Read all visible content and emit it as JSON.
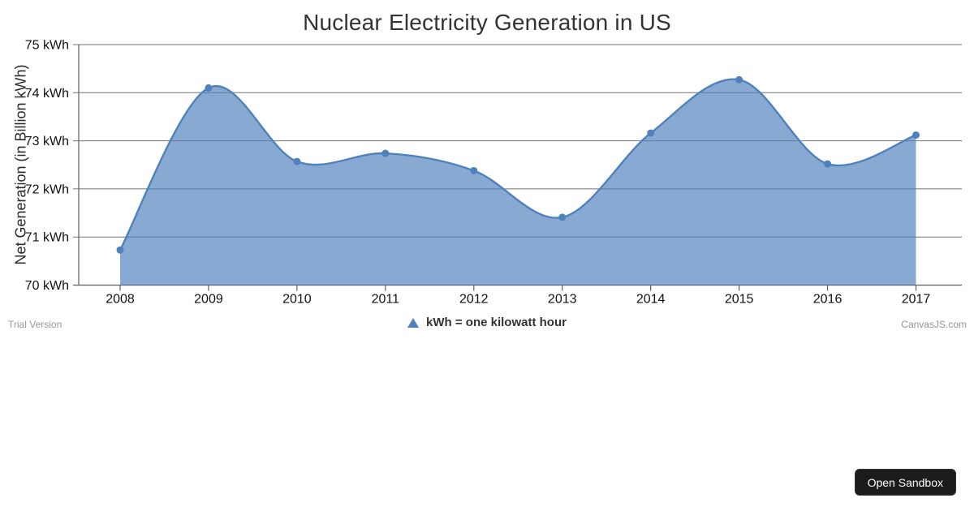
{
  "chart_data": {
    "type": "area",
    "subtype": "splineArea",
    "title": "Nuclear Electricity Generation in US",
    "xlabel": "",
    "ylabel": "Net Generation (in Billion kWh)",
    "categories": [
      "2008",
      "2009",
      "2010",
      "2011",
      "2012",
      "2013",
      "2014",
      "2015",
      "2016",
      "2017"
    ],
    "values": [
      70.73,
      74.1,
      72.57,
      72.74,
      72.38,
      71.41,
      73.16,
      74.27,
      72.52,
      73.12
    ],
    "ylim": [
      70,
      75
    ],
    "y_tick_step": 1,
    "y_tick_labels": [
      "70 kWh",
      "71 kWh",
      "72 kWh",
      "73 kWh",
      "74 kWh",
      "75 kWh"
    ],
    "grid": true,
    "legend_position": "bottom",
    "markers": true,
    "colors": {
      "series": "#4f81bc",
      "fill_opacity": 0.68,
      "gridline": "#707070",
      "axis": "#5e5e5e",
      "tick_label": "#111111",
      "title": "#333333"
    }
  },
  "legend": {
    "marker": "triangle-up-icon",
    "marker_color": "#4f81bc",
    "label": "kWh = one kilowatt hour"
  },
  "footer": {
    "trial": "Trial Version",
    "credit": "CanvasJS.com"
  },
  "sandbox": {
    "label": "Open Sandbox"
  }
}
